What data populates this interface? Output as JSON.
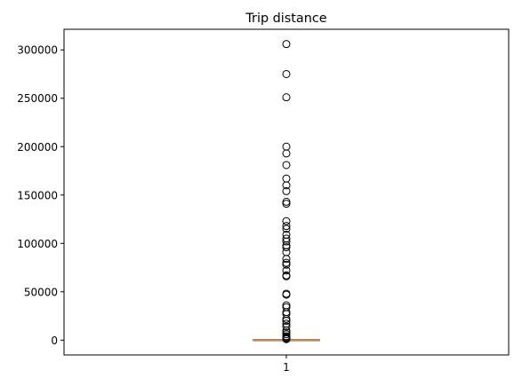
{
  "chart_data": {
    "type": "box",
    "title": "Trip distance",
    "xlabel": "",
    "ylabel": "",
    "categories": [
      "1"
    ],
    "ylim": [
      -15300,
      321300
    ],
    "yticks": [
      0,
      50000,
      100000,
      150000,
      200000,
      250000,
      300000
    ],
    "ytick_labels": [
      "0",
      "50000",
      "100000",
      "150000",
      "200000",
      "250000",
      "300000"
    ],
    "box": {
      "q1": 0,
      "median": 0,
      "q3": 0,
      "whisker_low": 0,
      "whisker_high": 0
    },
    "outliers": [
      306000,
      275000,
      251000,
      200000,
      193000,
      181000,
      167000,
      160000,
      154000,
      143000,
      141000,
      123000,
      118000,
      115000,
      109000,
      105000,
      102000,
      98000,
      96000,
      91000,
      84000,
      80000,
      78000,
      72000,
      67000,
      66000,
      48000,
      47000,
      36000,
      34000,
      29000,
      27000,
      22000,
      20000,
      17000,
      14000,
      10000,
      8000,
      6000,
      4000,
      3000,
      2000,
      1500,
      1000
    ],
    "colors": {
      "box": "#000000",
      "median": "#ff7f0e",
      "outlier": "#000000",
      "axes": "#000000"
    },
    "grid": false,
    "legend": "none"
  }
}
